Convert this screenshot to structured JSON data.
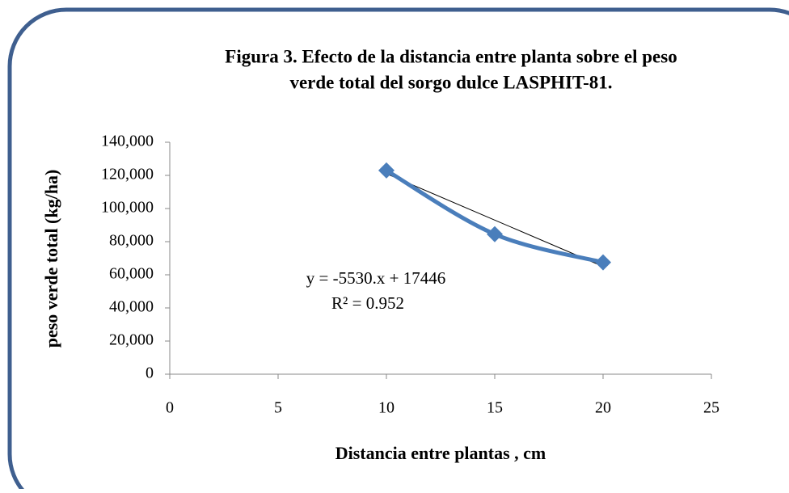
{
  "chart_data": {
    "type": "line",
    "title": "Figura 3. Efecto de la distancia entre planta sobre el peso",
    "subtitle": "verde total del sorgo dulce LASPHIT-81.",
    "x_label": "Distancia entre plantas , cm",
    "y_label": "peso verde total (kg/ha)",
    "annotations": [
      "y = -5530.x + 17446",
      "R² = 0.952"
    ],
    "x": [
      10,
      15,
      20
    ],
    "series": [
      {
        "name": "peso verde total",
        "color": "#4a7ebb",
        "values": [
          123000,
          84500,
          67500
        ]
      }
    ],
    "trendline": {
      "x": [
        10,
        20
      ],
      "values": [
        121000,
        65000
      ],
      "color": "#000000"
    },
    "xlim": [
      0,
      25
    ],
    "xticks": [
      0,
      5,
      10,
      15,
      20,
      25
    ],
    "ylim": [
      0,
      140000
    ],
    "yticks": [
      0,
      {
        "value": 20000,
        "label": "20,000"
      },
      {
        "value": 40000,
        "label": "40,000"
      },
      {
        "value": 60000,
        "label": "60,000"
      },
      {
        "value": 80000,
        "label": "80,000"
      },
      {
        "value": 100000,
        "label": "100,000"
      },
      {
        "value": 120000,
        "label": "120,000"
      },
      {
        "value": 140000,
        "label": "140,000"
      }
    ],
    "grid": false
  }
}
